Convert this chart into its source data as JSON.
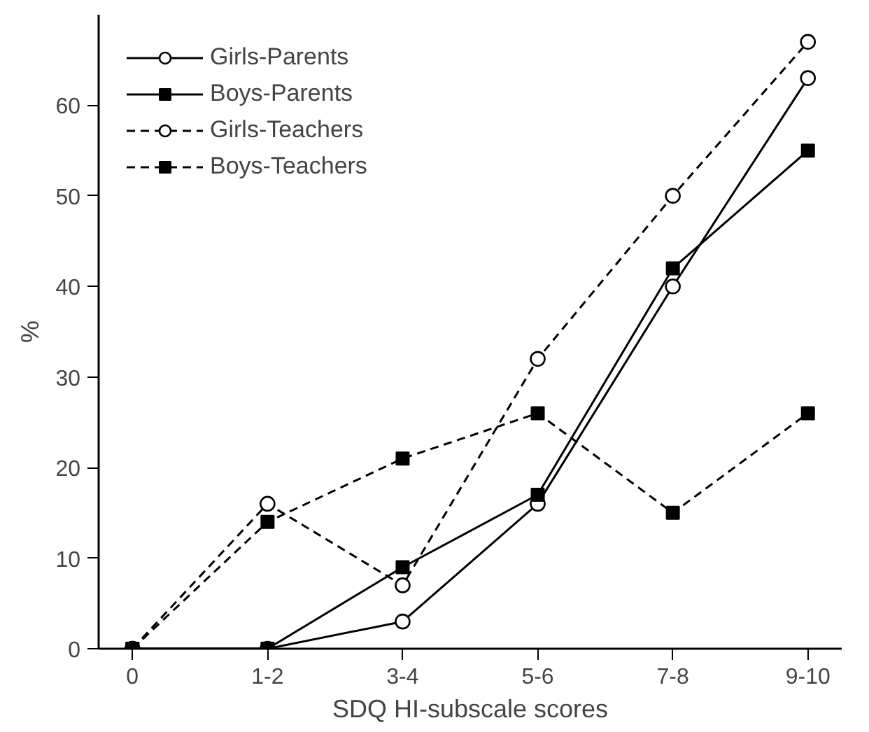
{
  "chart_data": {
    "type": "line",
    "xlabel": "SDQ HI-subscale scores",
    "ylabel": "%",
    "categories": [
      "0",
      "1-2",
      "3-4",
      "5-6",
      "7-8",
      "9-10"
    ],
    "ylim": [
      0,
      70
    ],
    "yticks": [
      0,
      10,
      20,
      30,
      40,
      50,
      60
    ],
    "grid": false,
    "legend": "top left",
    "series": [
      {
        "name": "Girls-Parents",
        "color": "#000000",
        "marker": "circle",
        "line_style": "solid",
        "values": [
          0,
          0,
          3,
          16,
          40,
          63
        ]
      },
      {
        "name": "Boys-Parents",
        "color": "#000000",
        "marker": "square",
        "line_style": "solid",
        "values": [
          0,
          0,
          9,
          17,
          42,
          55
        ]
      },
      {
        "name": "Girls-Teachers",
        "color": "#000000",
        "marker": "circle",
        "line_style": "dashed",
        "values": [
          0,
          16,
          7,
          32,
          50,
          67
        ]
      },
      {
        "name": "Boys-Teachers",
        "color": "#000000",
        "marker": "square",
        "line_style": "dashed",
        "values": [
          0,
          14,
          21,
          26,
          15,
          26
        ]
      }
    ]
  }
}
